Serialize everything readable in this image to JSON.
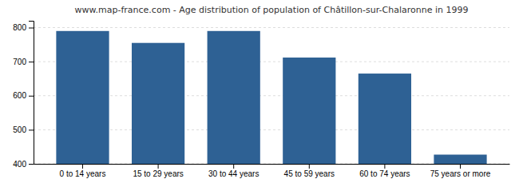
{
  "chart_data": {
    "type": "bar",
    "title": "www.map-france.com - Age distribution of population of Châtillon-sur-Chalaronne in 1999",
    "categories": [
      "0 to 14 years",
      "15 to 29 years",
      "30 to 44 years",
      "45 to 59 years",
      "60 to 74 years",
      "75 years or more"
    ],
    "values": [
      790,
      755,
      790,
      712,
      665,
      427
    ],
    "color": "#2e6194",
    "ylim": [
      400,
      820
    ],
    "yticks": [
      400,
      500,
      600,
      700,
      800
    ],
    "grid": true
  }
}
